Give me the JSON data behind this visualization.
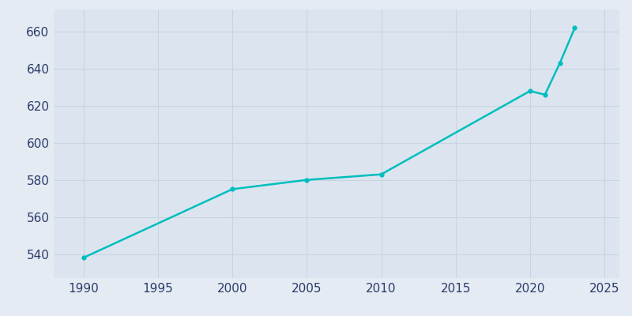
{
  "years": [
    1990,
    2000,
    2005,
    2010,
    2020,
    2021,
    2022,
    2023
  ],
  "population": [
    538,
    575,
    580,
    583,
    628,
    626,
    643,
    662
  ],
  "line_color": "#00BEBE",
  "bg_color": "#E4EBF2",
  "plot_bg_color": "#DCE5EF",
  "xlim": [
    1988,
    2026
  ],
  "ylim": [
    527,
    672
  ],
  "xticks": [
    1990,
    1995,
    2000,
    2005,
    2010,
    2015,
    2020,
    2025
  ],
  "yticks": [
    540,
    560,
    580,
    600,
    620,
    640,
    660
  ],
  "linewidth": 1.8,
  "markersize": 3.5,
  "tick_color": "#2B3A6B",
  "tick_fontsize": 11,
  "grid_color": "#C8D4E0",
  "grid_linewidth": 0.8
}
